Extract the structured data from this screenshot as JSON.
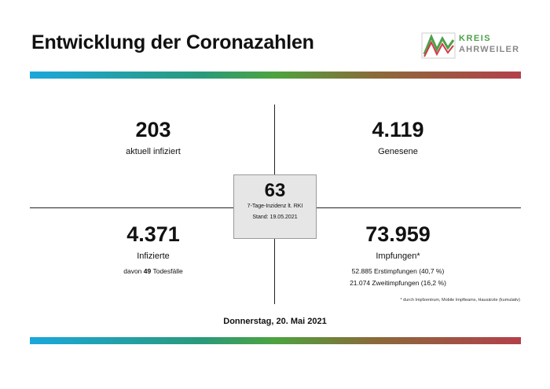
{
  "header": {
    "title": "Entwicklung der Coronazahlen"
  },
  "logo": {
    "line1": "KREIS",
    "line2": "AHRWEILER"
  },
  "stats": {
    "active": {
      "value": "203",
      "label": "aktuell infiziert"
    },
    "recovered": {
      "value": "4.119",
      "label": "Genesene"
    },
    "infected": {
      "value": "4.371",
      "label": "Infizierte",
      "deaths_prefix": "davon",
      "deaths_value": "49",
      "deaths_suffix": "Todesfälle"
    },
    "vaccinations": {
      "value": "73.959",
      "label": "Impfungen*",
      "first": "52.885 Erstimpfungen (40,7 %)",
      "second": "21.074 Zweitimpfungen (16,2 %)"
    }
  },
  "incidence": {
    "value": "63",
    "label": "7-Tage-Inzidenz lt. RKI",
    "date": "Stand: 19.05.2021"
  },
  "footnote": "* durch Impfzentrum, Mobile Impfteams, Hausärzte (kumulativ)",
  "date": "Donnerstag, 20. Mai 2021",
  "colors": {
    "stripe_start": "#1aa7dc",
    "stripe_mid": "#4da33f",
    "stripe_end": "#b3404b",
    "logo_green": "#4ea14a"
  }
}
